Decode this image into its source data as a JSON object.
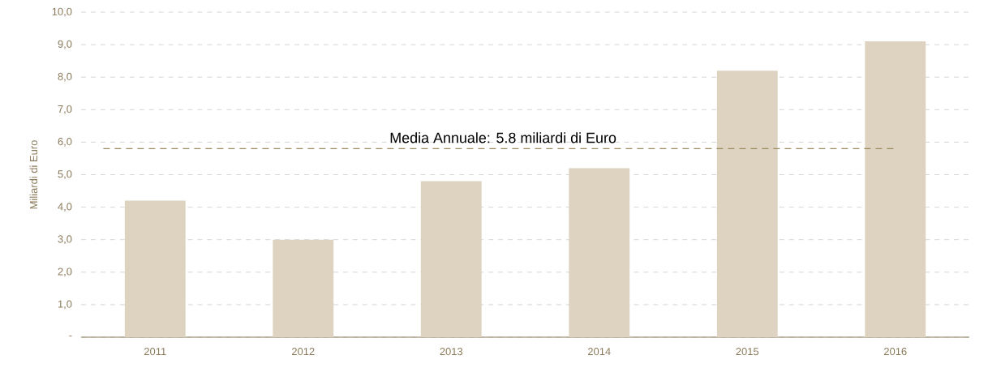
{
  "chart_data": {
    "type": "bar",
    "ylabel": "Miliardi di Euro",
    "categories": [
      "2011",
      "2012",
      "2013",
      "2014",
      "2015",
      "2016"
    ],
    "values": [
      4.2,
      3.0,
      4.8,
      5.2,
      8.2,
      9.1
    ],
    "color": "#ddd3c0",
    "ylim": [
      0,
      10
    ],
    "yticks": [
      {
        "value": 0,
        "label": "-"
      },
      {
        "value": 1,
        "label": "1,0"
      },
      {
        "value": 2,
        "label": "2,0"
      },
      {
        "value": 3,
        "label": "3,0"
      },
      {
        "value": 4,
        "label": "4,0"
      },
      {
        "value": 5,
        "label": "5,0"
      },
      {
        "value": 6,
        "label": "6,0"
      },
      {
        "value": 7,
        "label": "7,0"
      },
      {
        "value": 8,
        "label": "8,0"
      },
      {
        "value": 9,
        "label": "9,0"
      },
      {
        "value": 10,
        "label": "10,0"
      }
    ],
    "grid": "y",
    "ref_lines": [
      {
        "axis": "y",
        "value": 5.8,
        "label": "Media Annuale: 5.8 miliardi di Euro",
        "color": "#9a8a60",
        "line_style": "dashed"
      }
    ]
  }
}
